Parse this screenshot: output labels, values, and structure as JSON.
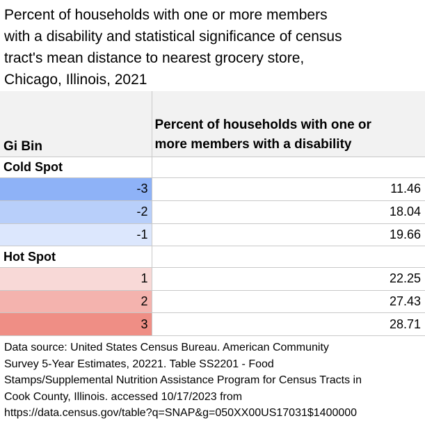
{
  "title": "Percent of households with one or more members\nwith a disability and statistical significance of census\ntract's mean distance to nearest grocery store,\nChicago, Illinois, 2021",
  "table": {
    "header_bin": "Gi Bin",
    "header_value": "Percent of households with one or\nmore members with a disability",
    "groups": [
      {
        "label": "Cold Spot",
        "rows": [
          {
            "bin": "-3",
            "value": "11.46",
            "color": "#8eb2f7"
          },
          {
            "bin": "-2",
            "value": "18.04",
            "color": "#b8cffa"
          },
          {
            "bin": "-1",
            "value": "19.66",
            "color": "#dce7fd"
          }
        ]
      },
      {
        "label": "Hot Spot",
        "rows": [
          {
            "bin": "1",
            "value": "22.25",
            "color": "#f8d9d7"
          },
          {
            "bin": "2",
            "value": "27.43",
            "color": "#f4b3ae"
          },
          {
            "bin": "3",
            "value": "28.71",
            "color": "#ef8e85"
          }
        ]
      }
    ]
  },
  "footer": "Data source: United States Census Bureau. American Community\nSurvey 5-Year Estimates, 20221. Table SS2201 - Food\nStamps/Supplemental Nutrition Assistance Program for Census Tracts in\nCook County, Illinois. accessed 10/17/2023 from\nhttps://data.census.gov/table?q=SNAP&g=050XX00US17031$1400000"
}
